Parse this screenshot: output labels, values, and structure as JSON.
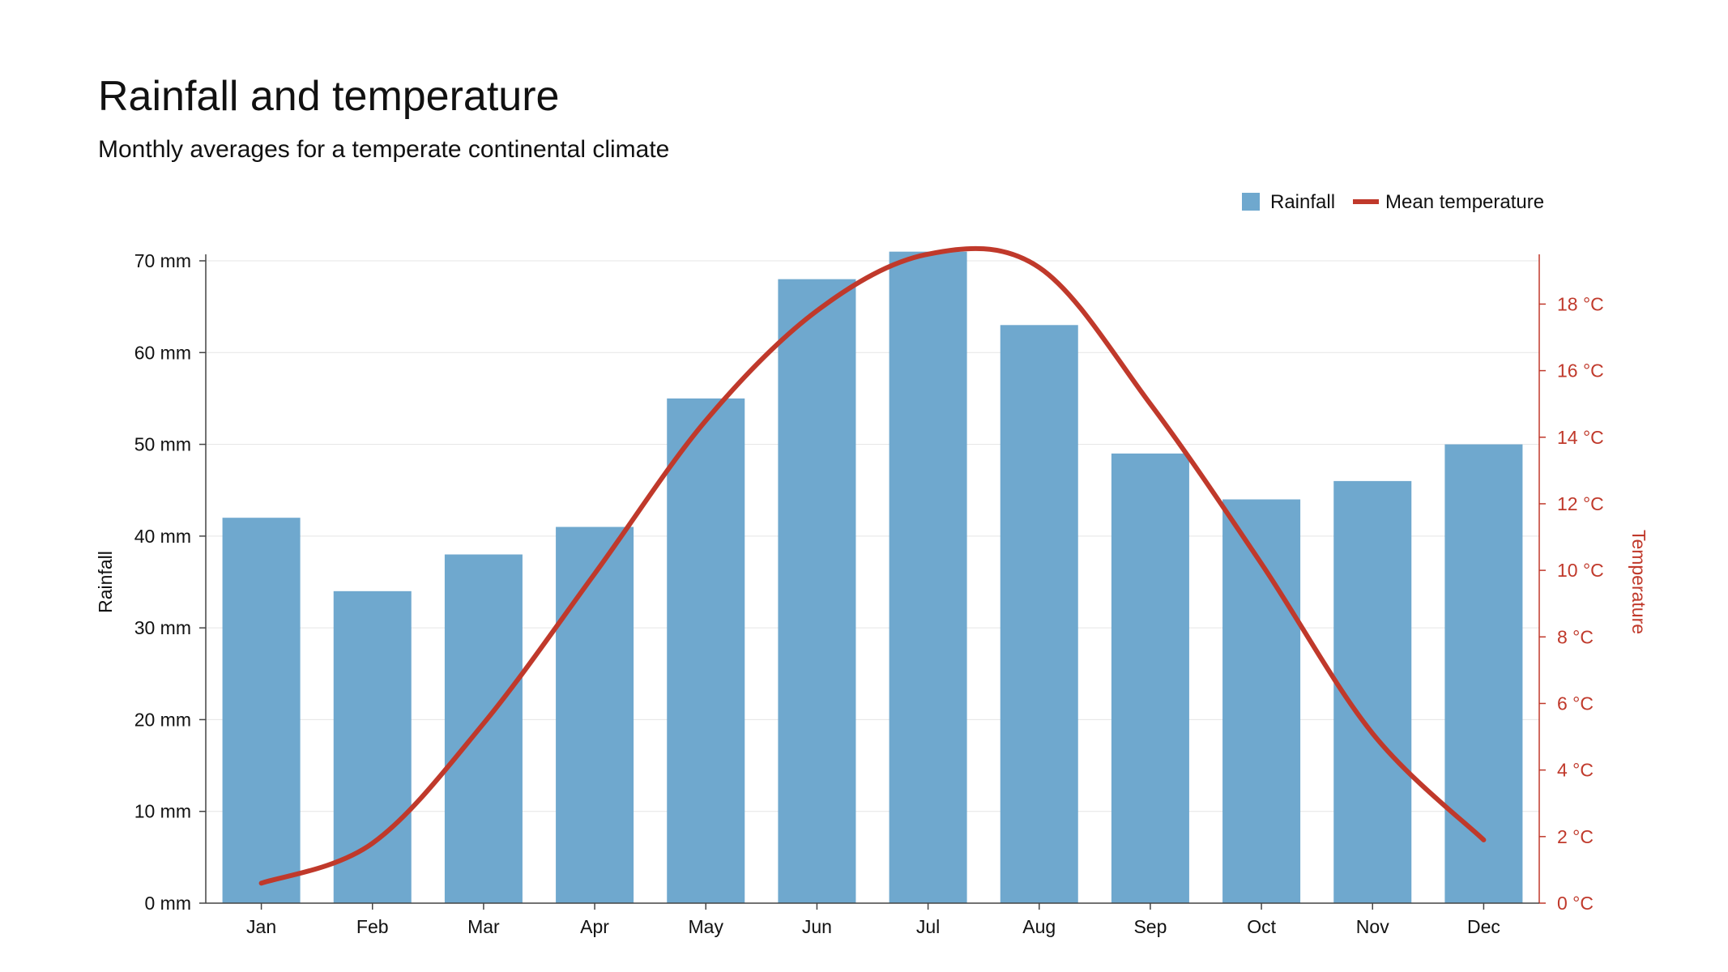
{
  "chart_data": {
    "type": "bar",
    "title": "Rainfall and temperature",
    "subtitle": "Monthly averages for a temperate continental climate",
    "categories": [
      "Jan",
      "Feb",
      "Mar",
      "Apr",
      "May",
      "Jun",
      "Jul",
      "Aug",
      "Sep",
      "Oct",
      "Nov",
      "Dec"
    ],
    "series": [
      {
        "name": "Rainfall",
        "type": "bar",
        "axis": "left",
        "color": "#6fa8ce",
        "values": [
          42,
          34,
          38,
          41,
          55,
          68,
          71,
          63,
          49,
          44,
          46,
          50
        ]
      },
      {
        "name": "Mean temperature",
        "type": "line",
        "axis": "right",
        "color": "#c0392b",
        "values": [
          0.6,
          1.8,
          5.4,
          9.9,
          14.5,
          17.8,
          19.5,
          19.1,
          15.0,
          10.2,
          5.1,
          1.9
        ]
      }
    ],
    "ylabel": "Rainfall",
    "ylabel_right": "Temperature",
    "ylim": [
      0,
      70
    ],
    "ylim_right": [
      0,
      19.3
    ],
    "yticks_left": [
      "0 mm",
      "10 mm",
      "20 mm",
      "30 mm",
      "40 mm",
      "50 mm",
      "60 mm",
      "70 mm"
    ],
    "yticks_right": [
      "0 °C",
      "2 °C",
      "4 °C",
      "6 °C",
      "8 °C",
      "10 °C",
      "12 °C",
      "14 °C",
      "16 °C",
      "18 °C"
    ],
    "legend_position": "top-right",
    "grid": true
  }
}
